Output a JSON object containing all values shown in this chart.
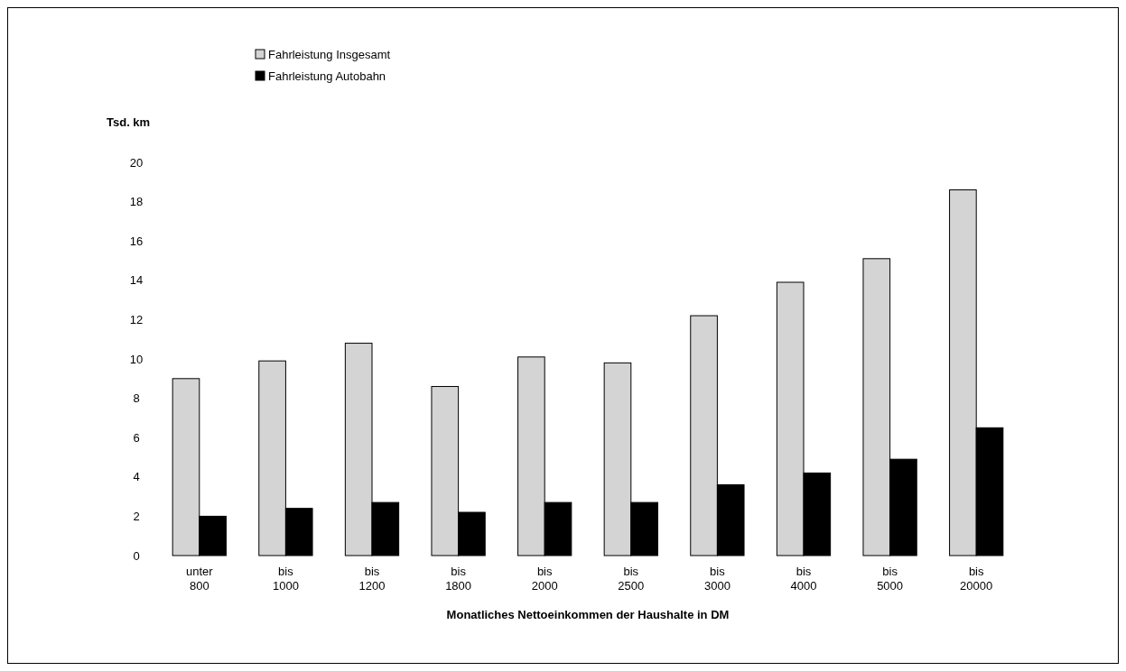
{
  "chart_data": {
    "type": "bar",
    "ylabel": "Tsd. km",
    "xlabel": "Monatliches Nettoeinkommen der Haushalte in DM",
    "categories": [
      "unter 800",
      "bis 1000",
      "bis 1200",
      "bis 1800",
      "bis 2000",
      "bis 2500",
      "bis 3000",
      "bis 4000",
      "bis 5000",
      "bis 20000"
    ],
    "series": [
      {
        "name": "Fahrleistung Insgesamt",
        "color": "#d4d4d4",
        "values": [
          9.0,
          9.9,
          10.8,
          8.6,
          10.1,
          9.8,
          12.2,
          13.9,
          15.1,
          18.6
        ]
      },
      {
        "name": "Fahrleistung Autobahn",
        "color": "#000000",
        "values": [
          2.0,
          2.4,
          2.7,
          2.2,
          2.7,
          2.7,
          3.6,
          4.2,
          4.9,
          6.5
        ]
      }
    ],
    "ylim": [
      0,
      20
    ],
    "yticks": [
      0,
      2,
      4,
      6,
      8,
      10,
      12,
      14,
      16,
      18,
      20
    ],
    "grid": false,
    "legend": "top left"
  }
}
